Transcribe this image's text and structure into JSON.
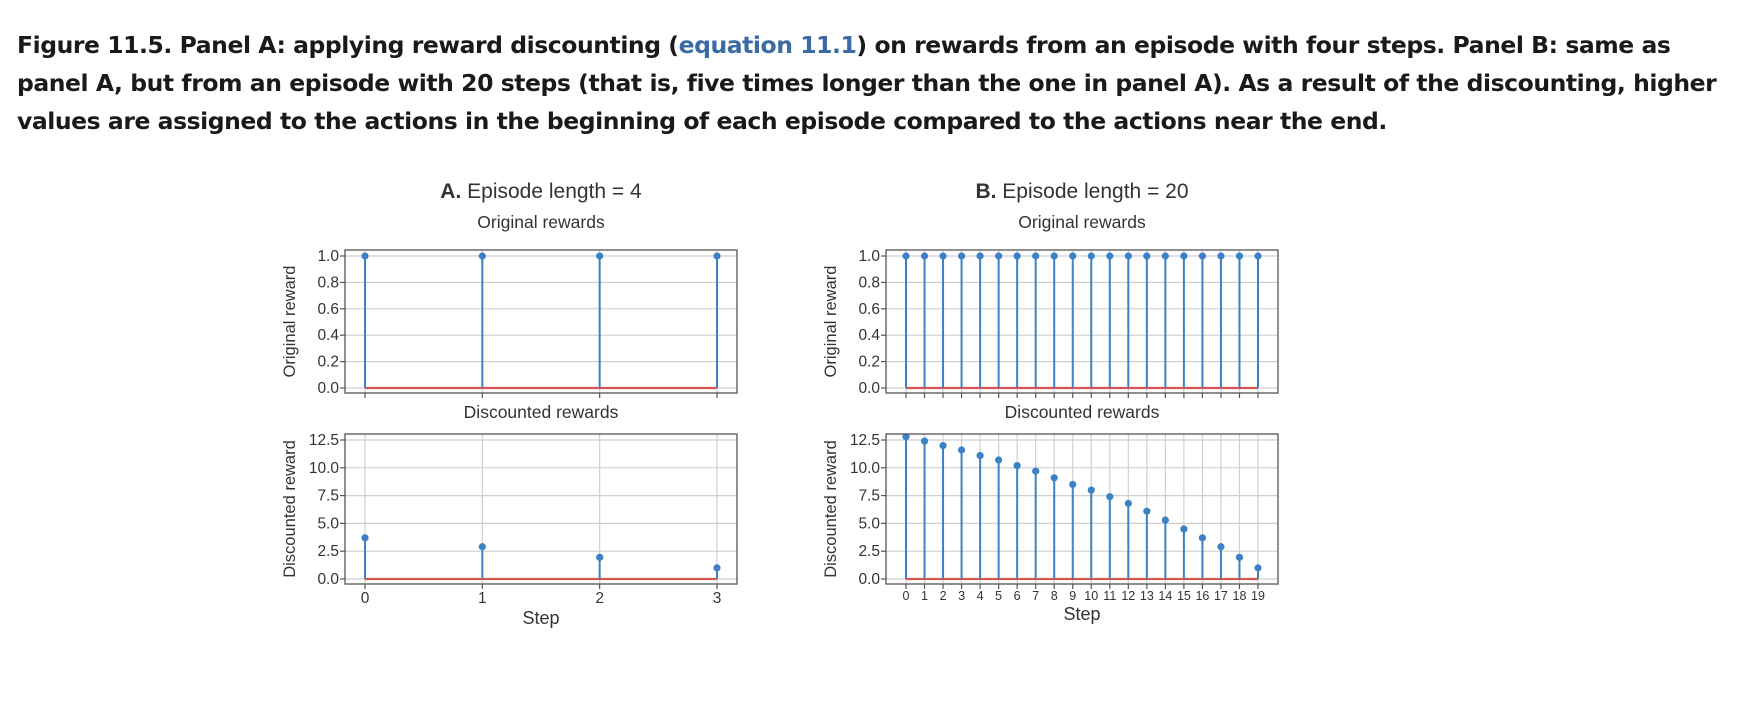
{
  "caption": {
    "label": "Figure 11.5.",
    "text_before_link": " Panel A: applying reward discounting (",
    "link_text": "equation 11.1",
    "text_after_link": ") on rewards from an episode with four steps. Panel B: same as panel A, but from an episode with 20 steps (that is, five times longer than the one in panel A). As a result of the discounting, higher values are assigned to the actions in the beginning of each episode compared to the actions near the end."
  },
  "colors": {
    "stem": "#3b82c4",
    "baseline": "#d9534f",
    "grid": "#cfcfcf",
    "axis": "#555555",
    "text": "#333333",
    "link": "#3b6aa5"
  },
  "chart_data": [
    {
      "type": "stem",
      "panel": "A",
      "panel_label": "A.",
      "title": "Episode length = 4",
      "subplots": [
        {
          "subtitle": "Original rewards",
          "ylabel": "Original reward",
          "yticks": [
            "0.0",
            "0.2",
            "0.4",
            "0.6",
            "0.8",
            "1.0"
          ],
          "ylim": [
            0,
            1.0
          ],
          "x": [
            0,
            1,
            2,
            3
          ],
          "values": [
            1.0,
            1.0,
            1.0,
            1.0
          ]
        },
        {
          "subtitle": "Discounted rewards",
          "ylabel": "Discounted reward",
          "yticks": [
            "0.0",
            "2.5",
            "5.0",
            "7.5",
            "10.0",
            "12.5"
          ],
          "ylim": [
            0,
            12.5
          ],
          "x": [
            0,
            1,
            2,
            3
          ],
          "values": [
            3.7,
            2.9,
            1.95,
            1.0
          ]
        }
      ],
      "xticks": [
        "0",
        "1",
        "2",
        "3"
      ],
      "xlabel": "Step",
      "grid": true
    },
    {
      "type": "stem",
      "panel": "B",
      "panel_label": "B.",
      "title": "Episode length = 20",
      "subplots": [
        {
          "subtitle": "Original rewards",
          "ylabel": "Original reward",
          "yticks": [
            "0.0",
            "0.2",
            "0.4",
            "0.6",
            "0.8",
            "1.0"
          ],
          "ylim": [
            0,
            1.0
          ],
          "x": [
            0,
            1,
            2,
            3,
            4,
            5,
            6,
            7,
            8,
            9,
            10,
            11,
            12,
            13,
            14,
            15,
            16,
            17,
            18,
            19
          ],
          "values": [
            1.0,
            1.0,
            1.0,
            1.0,
            1.0,
            1.0,
            1.0,
            1.0,
            1.0,
            1.0,
            1.0,
            1.0,
            1.0,
            1.0,
            1.0,
            1.0,
            1.0,
            1.0,
            1.0,
            1.0
          ]
        },
        {
          "subtitle": "Discounted rewards",
          "ylabel": "Discounted reward",
          "yticks": [
            "0.0",
            "2.5",
            "5.0",
            "7.5",
            "10.0",
            "12.5"
          ],
          "ylim": [
            0,
            12.5
          ],
          "x": [
            0,
            1,
            2,
            3,
            4,
            5,
            6,
            7,
            8,
            9,
            10,
            11,
            12,
            13,
            14,
            15,
            16,
            17,
            18,
            19
          ],
          "values": [
            12.8,
            12.4,
            12.0,
            11.6,
            11.1,
            10.7,
            10.2,
            9.7,
            9.1,
            8.5,
            8.0,
            7.4,
            6.8,
            6.1,
            5.3,
            4.5,
            3.7,
            2.9,
            1.95,
            1.0
          ]
        }
      ],
      "xticks": [
        "0",
        "1",
        "2",
        "3",
        "4",
        "5",
        "6",
        "7",
        "8",
        "9",
        "10",
        "11",
        "12",
        "13",
        "14",
        "15",
        "16",
        "17",
        "18",
        "19"
      ],
      "xlabel": "Step",
      "grid": true
    }
  ]
}
